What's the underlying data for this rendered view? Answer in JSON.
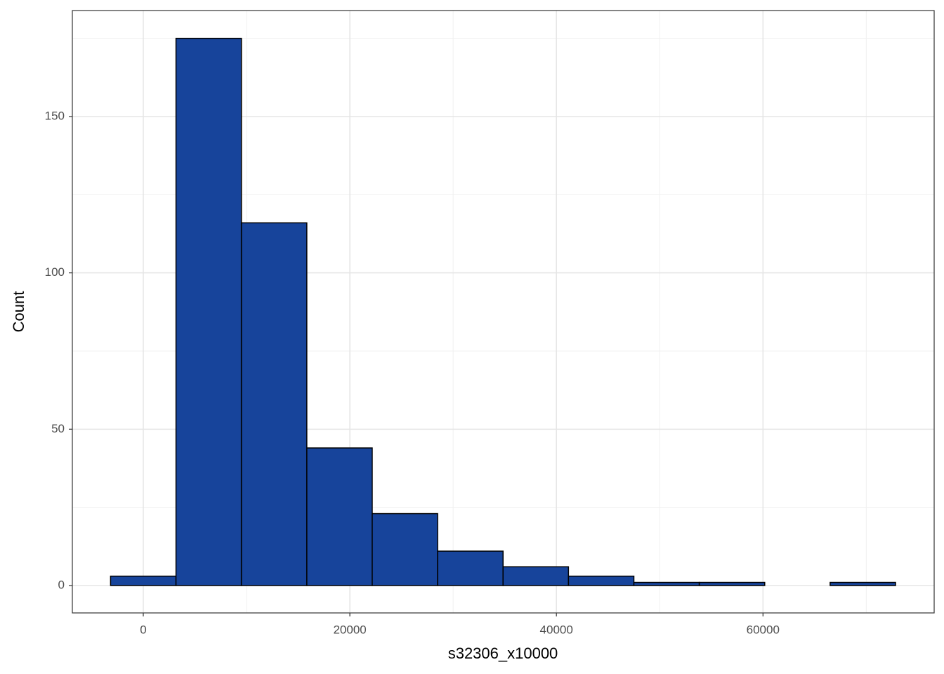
{
  "chart_data": {
    "type": "histogram",
    "x_label": "s32306_x10000",
    "y_label": "Count",
    "bins": [
      -3167,
      3167,
      9500,
      15833,
      22167,
      28500,
      34833,
      41167,
      47500,
      53833,
      60167,
      66500,
      72833
    ],
    "counts": [
      3,
      175,
      116,
      44,
      23,
      11,
      6,
      3,
      1,
      1,
      0,
      1
    ],
    "color": "#17449b",
    "edge_color": "#000000",
    "xlim": [
      -6868,
      76573
    ],
    "ylim": [
      -8.76,
      183.9
    ],
    "xticks": [
      0,
      20000,
      40000,
      60000
    ],
    "yticks": [
      0,
      50,
      100,
      150
    ],
    "xminor": [
      10000,
      30000,
      50000,
      70000
    ],
    "yminor": [
      25,
      75,
      125,
      175
    ],
    "grid": true
  }
}
